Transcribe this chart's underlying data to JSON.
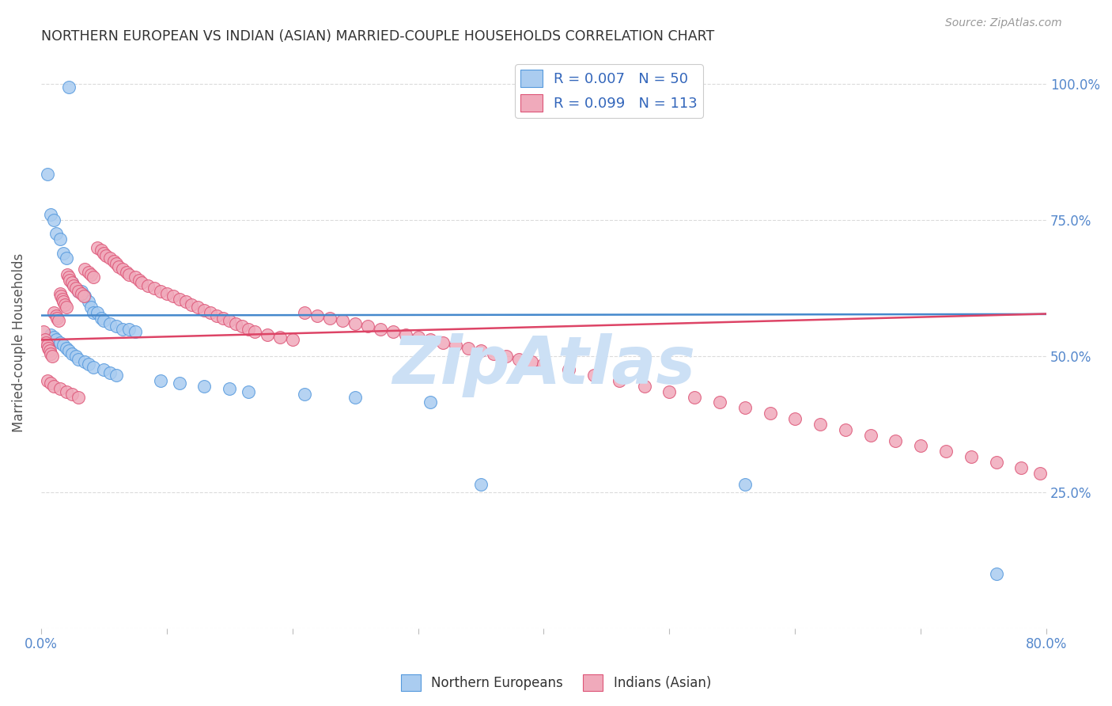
{
  "title": "NORTHERN EUROPEAN VS INDIAN (ASIAN) MARRIED-COUPLE HOUSEHOLDS CORRELATION CHART",
  "source": "Source: ZipAtlas.com",
  "ylabel": "Married-couple Households",
  "right_yticks": [
    "100.0%",
    "75.0%",
    "50.0%",
    "25.0%"
  ],
  "right_ytick_vals": [
    1.0,
    0.75,
    0.5,
    0.25
  ],
  "blue_color": "#aaccf0",
  "pink_color": "#f0aabb",
  "blue_edge_color": "#5599dd",
  "pink_edge_color": "#dd5577",
  "blue_line_color": "#4488cc",
  "pink_line_color": "#dd4466",
  "axis_label_color": "#5588cc",
  "watermark": "ZipAtlas",
  "watermark_color": "#cce0f5",
  "blue_line_intercept": 0.575,
  "blue_line_slope": 0.003,
  "pink_line_intercept": 0.53,
  "pink_line_slope": 0.06,
  "blue_scatter_x": [
    0.022,
    0.005,
    0.008,
    0.01,
    0.012,
    0.015,
    0.018,
    0.02,
    0.025,
    0.03,
    0.032,
    0.035,
    0.038,
    0.04,
    0.042,
    0.045,
    0.048,
    0.05,
    0.055,
    0.06,
    0.065,
    0.07,
    0.075,
    0.008,
    0.01,
    0.012,
    0.015,
    0.018,
    0.02,
    0.022,
    0.025,
    0.028,
    0.03,
    0.035,
    0.038,
    0.042,
    0.05,
    0.055,
    0.06,
    0.095,
    0.11,
    0.13,
    0.15,
    0.165,
    0.21,
    0.25,
    0.31,
    0.35,
    0.56,
    0.76
  ],
  "blue_scatter_y": [
    0.995,
    0.835,
    0.76,
    0.75,
    0.725,
    0.715,
    0.69,
    0.68,
    0.635,
    0.62,
    0.62,
    0.61,
    0.6,
    0.59,
    0.58,
    0.58,
    0.57,
    0.565,
    0.56,
    0.555,
    0.55,
    0.55,
    0.545,
    0.54,
    0.535,
    0.53,
    0.525,
    0.52,
    0.515,
    0.51,
    0.505,
    0.5,
    0.495,
    0.49,
    0.485,
    0.48,
    0.475,
    0.47,
    0.465,
    0.455,
    0.45,
    0.445,
    0.44,
    0.435,
    0.43,
    0.425,
    0.415,
    0.265,
    0.265,
    0.1
  ],
  "pink_scatter_x": [
    0.002,
    0.003,
    0.004,
    0.005,
    0.006,
    0.007,
    0.008,
    0.009,
    0.01,
    0.012,
    0.013,
    0.014,
    0.015,
    0.016,
    0.017,
    0.018,
    0.019,
    0.02,
    0.021,
    0.022,
    0.023,
    0.025,
    0.026,
    0.028,
    0.03,
    0.032,
    0.034,
    0.035,
    0.038,
    0.04,
    0.042,
    0.045,
    0.048,
    0.05,
    0.052,
    0.055,
    0.058,
    0.06,
    0.062,
    0.065,
    0.068,
    0.07,
    0.075,
    0.078,
    0.08,
    0.085,
    0.09,
    0.095,
    0.1,
    0.105,
    0.11,
    0.115,
    0.12,
    0.125,
    0.13,
    0.135,
    0.14,
    0.145,
    0.15,
    0.155,
    0.16,
    0.165,
    0.17,
    0.18,
    0.19,
    0.2,
    0.21,
    0.22,
    0.23,
    0.24,
    0.25,
    0.26,
    0.27,
    0.28,
    0.29,
    0.3,
    0.31,
    0.32,
    0.33,
    0.34,
    0.35,
    0.36,
    0.37,
    0.38,
    0.39,
    0.4,
    0.42,
    0.44,
    0.46,
    0.48,
    0.5,
    0.52,
    0.54,
    0.56,
    0.58,
    0.6,
    0.62,
    0.64,
    0.66,
    0.68,
    0.7,
    0.72,
    0.74,
    0.76,
    0.78,
    0.795,
    0.005,
    0.008,
    0.01,
    0.015,
    0.02,
    0.025,
    0.03
  ],
  "pink_scatter_y": [
    0.545,
    0.53,
    0.525,
    0.52,
    0.515,
    0.51,
    0.505,
    0.5,
    0.58,
    0.575,
    0.57,
    0.565,
    0.615,
    0.61,
    0.605,
    0.6,
    0.595,
    0.59,
    0.65,
    0.645,
    0.64,
    0.635,
    0.63,
    0.625,
    0.62,
    0.615,
    0.61,
    0.66,
    0.655,
    0.65,
    0.645,
    0.7,
    0.695,
    0.69,
    0.685,
    0.68,
    0.675,
    0.67,
    0.665,
    0.66,
    0.655,
    0.65,
    0.645,
    0.64,
    0.635,
    0.63,
    0.625,
    0.62,
    0.615,
    0.61,
    0.605,
    0.6,
    0.595,
    0.59,
    0.585,
    0.58,
    0.575,
    0.57,
    0.565,
    0.56,
    0.555,
    0.55,
    0.545,
    0.54,
    0.535,
    0.53,
    0.58,
    0.575,
    0.57,
    0.565,
    0.56,
    0.555,
    0.55,
    0.545,
    0.54,
    0.535,
    0.53,
    0.525,
    0.52,
    0.515,
    0.51,
    0.505,
    0.5,
    0.495,
    0.49,
    0.485,
    0.475,
    0.465,
    0.455,
    0.445,
    0.435,
    0.425,
    0.415,
    0.405,
    0.395,
    0.385,
    0.375,
    0.365,
    0.355,
    0.345,
    0.335,
    0.325,
    0.315,
    0.305,
    0.295,
    0.285,
    0.455,
    0.45,
    0.445,
    0.44,
    0.435,
    0.43,
    0.425
  ],
  "xlim": [
    0.0,
    0.8
  ],
  "ylim": [
    0.0,
    1.05
  ],
  "background_color": "#ffffff",
  "grid_color": "#cccccc"
}
